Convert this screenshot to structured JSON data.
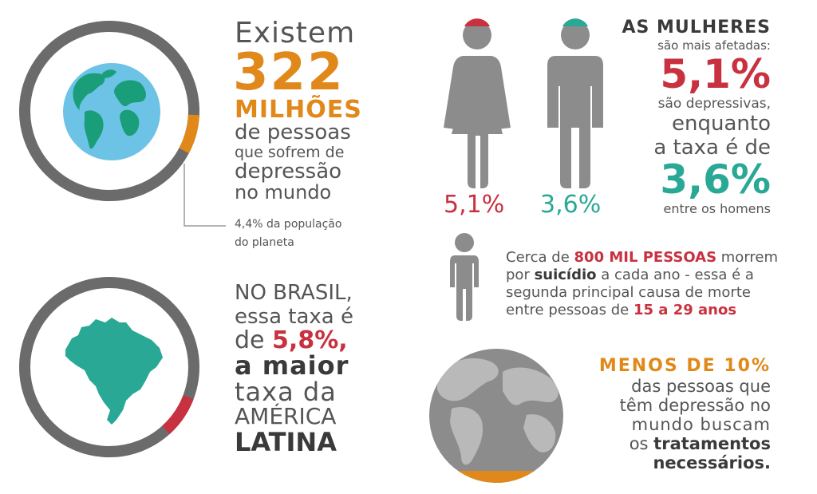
{
  "colors": {
    "ring": "#6b6b6b",
    "orange": "#e0891a",
    "red": "#c8313f",
    "teal": "#2aa896",
    "ocean": "#6cc3e6",
    "land": "#1a9e7a",
    "figure": "#8c8c8c",
    "globe_gray": "#8c8c8c",
    "globe_land": "#b9b9b9"
  },
  "icons": {
    "world_globe": "globe-icon",
    "brazil_map": "brazil-map-icon",
    "woman": "woman-figure-icon",
    "man": "man-figure-icon",
    "person": "person-icon",
    "gray_globe": "gray-globe-icon"
  },
  "levels": {
    "world_ring_highlight_percent": 4.4,
    "brazil_ring_highlight_percent": 5.8,
    "globe_bottom_highlight_percent": 10
  },
  "world": {
    "line1": "Existem",
    "number": "322",
    "line3": "MILHÕES",
    "line4": "de pessoas",
    "line5": "que sofrem de",
    "line6": "depressão",
    "line7": "no mundo",
    "note_line1": "4,4% da população",
    "note_line2": "do planeta"
  },
  "brazil": {
    "line1": "NO BRASIL,",
    "line2": "essa taxa é",
    "line3_prefix": "de ",
    "line3_value": "5,8%,",
    "line4": "a maior",
    "line5": "taxa da",
    "line6": "AMÉRICA",
    "line7": "LATINA"
  },
  "gender": {
    "woman_label": "5,1%",
    "man_label": "3,6%",
    "heading": "AS MULHERES",
    "line2": "são mais afetadas:",
    "women_value": "5,1%",
    "line4": "são depressivas,",
    "line5": "enquanto",
    "line6": "a taxa é de",
    "men_value": "3,6%",
    "line8": "entre os homens"
  },
  "suicide": {
    "l1_a": "Cerca de ",
    "l1_b": "800 MIL PESSOAS",
    "l1_c": " morrem",
    "l2_a": "por ",
    "l2_b": "suicídio",
    "l2_c": " a cada ano - essa é a",
    "l3": "segunda principal causa de morte",
    "l4_a": "entre pessoas de ",
    "l4_b": "15 a 29 anos"
  },
  "treatment": {
    "heading": "MENOS DE 10%",
    "line2": "das pessoas que",
    "line3": "têm depressão no",
    "line4": "mundo buscam",
    "line5_a": "os ",
    "line5_b": "tratamentos",
    "line6": "necessários."
  }
}
